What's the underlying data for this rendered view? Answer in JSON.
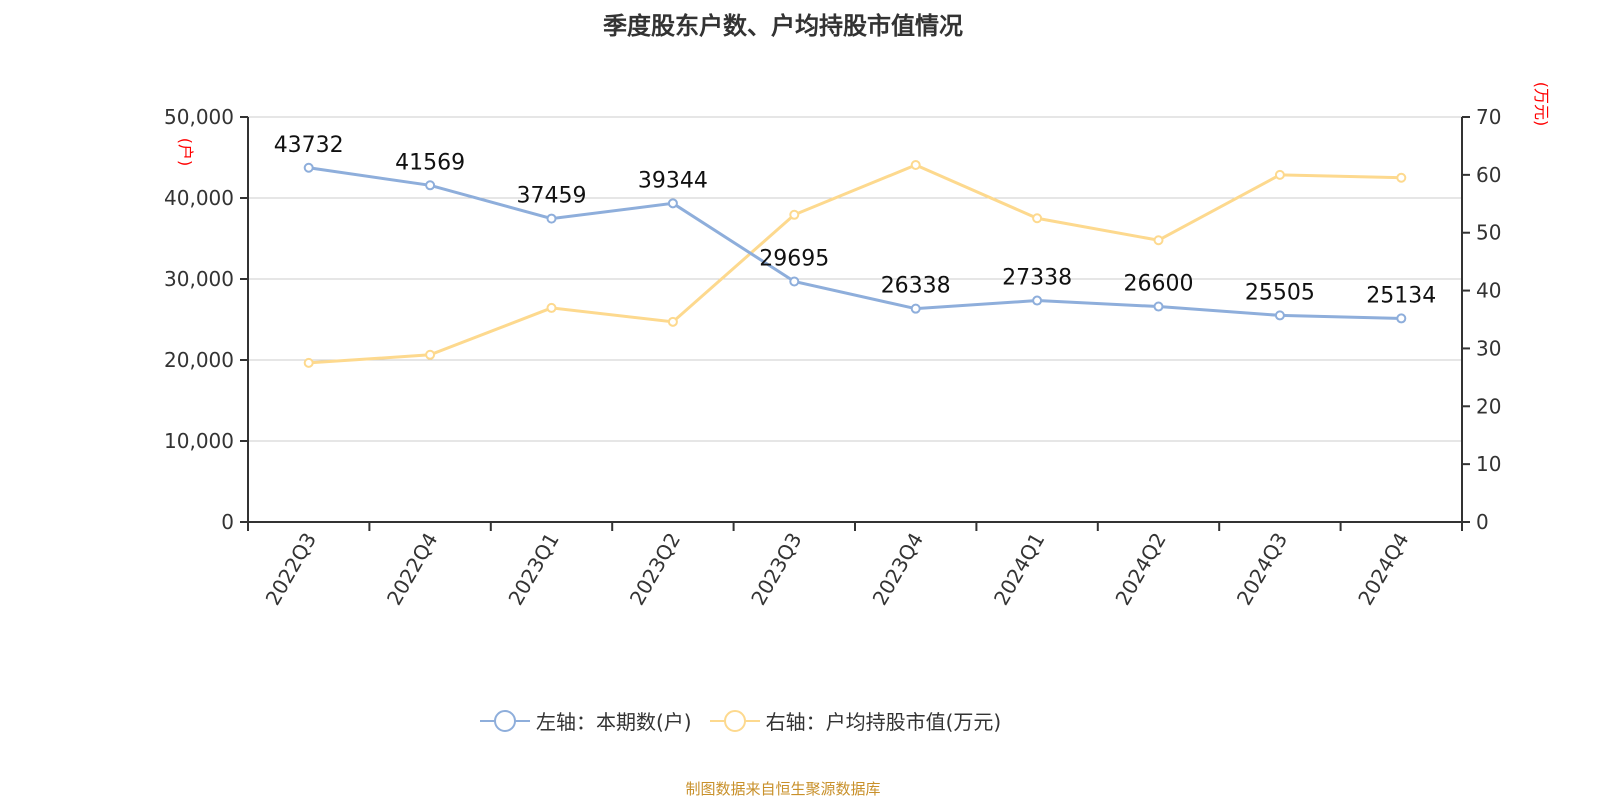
{
  "chart_data": {
    "type": "line",
    "title": "季度股东户数、户均持股市值情况",
    "categories": [
      "2022Q3",
      "2022Q4",
      "2023Q1",
      "2023Q2",
      "2023Q3",
      "2023Q4",
      "2024Q1",
      "2024Q2",
      "2024Q3",
      "2024Q4"
    ],
    "left_axis": {
      "unit_label": "(户)",
      "range": [
        0,
        50000
      ],
      "ticks": [
        "0",
        "10,000",
        "20,000",
        "30,000",
        "40,000",
        "50,000"
      ]
    },
    "right_axis": {
      "unit_label": "(万元)",
      "range": [
        0,
        70
      ],
      "ticks": [
        "0",
        "10",
        "20",
        "30",
        "40",
        "50",
        "60",
        "70"
      ]
    },
    "series": [
      {
        "name": "左轴：本期数(户)",
        "axis": "left",
        "color": "#8eaedb",
        "values": [
          43732,
          41569,
          37459,
          39344,
          29695,
          26338,
          27338,
          26600,
          25505,
          25134
        ],
        "labels": [
          "43732",
          "41569",
          "37459",
          "39344",
          "29695",
          "26338",
          "27338",
          "26600",
          "25505",
          "25134"
        ]
      },
      {
        "name": "右轴：户均持股市值(万元)",
        "axis": "right",
        "color": "#fdd98e",
        "values": [
          27.5,
          28.9,
          37.0,
          34.6,
          53.1,
          61.7,
          52.5,
          48.7,
          60.0,
          59.5
        ]
      }
    ],
    "grid": true,
    "legend_position": "bottom"
  },
  "source": "制图数据来自恒生聚源数据库"
}
